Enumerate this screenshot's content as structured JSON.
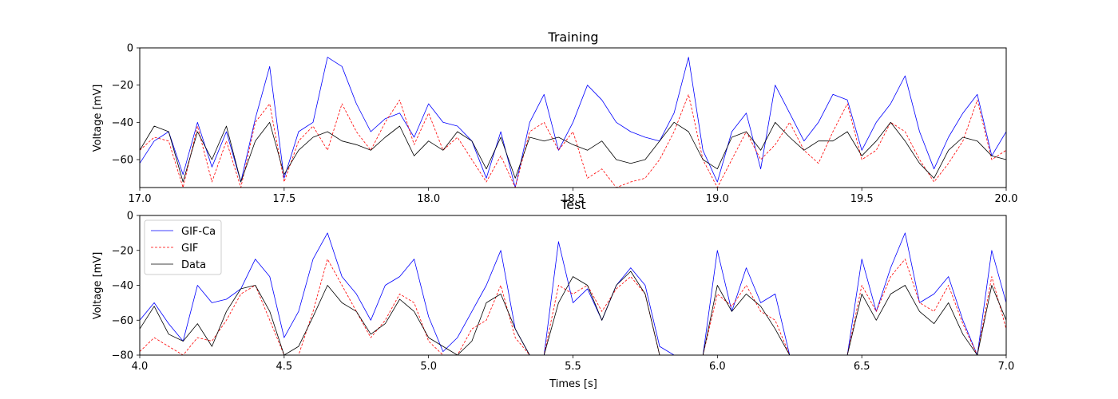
{
  "figure": {
    "xlabel": "Times [s]"
  },
  "colors": {
    "gif_ca": "#0000ff",
    "gif": "#ff0000",
    "data": "#000000",
    "axes": "#000000",
    "background": "#ffffff"
  },
  "chart_data": [
    {
      "type": "line",
      "title": "Training",
      "ylabel": "Voltage [mV]",
      "xlabel": "",
      "xlim": [
        17.0,
        20.0
      ],
      "ylim": [
        -75,
        0
      ],
      "xticks": [
        "17.0",
        "17.5",
        "18.0",
        "18.5",
        "19.0",
        "19.5",
        "20.0"
      ],
      "yticks": [
        "-60",
        "-40",
        "-20",
        "0"
      ],
      "grid": false,
      "legend": null,
      "series": [
        {
          "name": "GIF-Ca",
          "style": "solid",
          "x": [
            17.0,
            17.05,
            17.1,
            17.15,
            17.2,
            17.25,
            17.3,
            17.35,
            17.4,
            17.45,
            17.5,
            17.55,
            17.6,
            17.65,
            17.7,
            17.75,
            17.8,
            17.85,
            17.9,
            17.95,
            18.0,
            18.05,
            18.1,
            18.15,
            18.2,
            18.25,
            18.3,
            18.35,
            18.4,
            18.45,
            18.5,
            18.55,
            18.6,
            18.65,
            18.7,
            18.75,
            18.8,
            18.85,
            18.9,
            18.95,
            19.0,
            19.05,
            19.1,
            19.15,
            19.2,
            19.25,
            19.3,
            19.35,
            19.4,
            19.45,
            19.5,
            19.55,
            19.6,
            19.65,
            19.7,
            19.75,
            19.8,
            19.85,
            19.9,
            19.95,
            20.0
          ],
          "y": [
            -62,
            -50,
            -45,
            -68,
            -40,
            -64,
            -45,
            -72,
            -38,
            -10,
            -70,
            -45,
            -40,
            -5,
            -10,
            -30,
            -45,
            -38,
            -35,
            -48,
            -30,
            -40,
            -42,
            -50,
            -70,
            -45,
            -75,
            -40,
            -25,
            -55,
            -40,
            -20,
            -28,
            -40,
            -45,
            -48,
            -50,
            -35,
            -5,
            -55,
            -72,
            -45,
            -35,
            -65,
            -20,
            -35,
            -50,
            -40,
            -25,
            -28,
            -55,
            -40,
            -30,
            -15,
            -45,
            -65,
            -48,
            -35,
            -25,
            -58,
            -45
          ]
        },
        {
          "name": "GIF",
          "style": "dashed",
          "x": [
            17.0,
            17.05,
            17.1,
            17.15,
            17.2,
            17.25,
            17.3,
            17.35,
            17.4,
            17.45,
            17.5,
            17.55,
            17.6,
            17.65,
            17.7,
            17.75,
            17.8,
            17.85,
            17.9,
            17.95,
            18.0,
            18.05,
            18.1,
            18.15,
            18.2,
            18.25,
            18.3,
            18.35,
            18.4,
            18.45,
            18.5,
            18.55,
            18.6,
            18.65,
            18.7,
            18.75,
            18.8,
            18.85,
            18.9,
            18.95,
            19.0,
            19.05,
            19.1,
            19.15,
            19.2,
            19.25,
            19.3,
            19.35,
            19.4,
            19.45,
            19.5,
            19.55,
            19.6,
            19.65,
            19.7,
            19.75,
            19.8,
            19.85,
            19.9,
            19.95,
            20.0
          ],
          "y": [
            -55,
            -48,
            -50,
            -75,
            -42,
            -72,
            -50,
            -75,
            -40,
            -30,
            -72,
            -50,
            -42,
            -55,
            -30,
            -45,
            -55,
            -40,
            -28,
            -52,
            -35,
            -55,
            -48,
            -60,
            -72,
            -58,
            -75,
            -45,
            -40,
            -55,
            -45,
            -70,
            -65,
            -75,
            -72,
            -70,
            -60,
            -45,
            -25,
            -60,
            -75,
            -60,
            -45,
            -60,
            -52,
            -40,
            -55,
            -62,
            -45,
            -30,
            -60,
            -55,
            -40,
            -45,
            -60,
            -72,
            -62,
            -50,
            -28,
            -60,
            -55
          ]
        },
        {
          "name": "Data",
          "style": "solid",
          "x": [
            17.0,
            17.05,
            17.1,
            17.15,
            17.2,
            17.25,
            17.3,
            17.35,
            17.4,
            17.45,
            17.5,
            17.55,
            17.6,
            17.65,
            17.7,
            17.75,
            17.8,
            17.85,
            17.9,
            17.95,
            18.0,
            18.05,
            18.1,
            18.15,
            18.2,
            18.25,
            18.3,
            18.35,
            18.4,
            18.45,
            18.5,
            18.55,
            18.6,
            18.65,
            18.7,
            18.75,
            18.8,
            18.85,
            18.9,
            18.95,
            19.0,
            19.05,
            19.1,
            19.15,
            19.2,
            19.25,
            19.3,
            19.35,
            19.4,
            19.45,
            19.5,
            19.55,
            19.6,
            19.65,
            19.7,
            19.75,
            19.8,
            19.85,
            19.9,
            19.95,
            20.0
          ],
          "y": [
            -55,
            -42,
            -45,
            -72,
            -45,
            -60,
            -42,
            -72,
            -50,
            -40,
            -68,
            -55,
            -48,
            -45,
            -50,
            -52,
            -55,
            -48,
            -42,
            -58,
            -50,
            -55,
            -45,
            -50,
            -65,
            -48,
            -70,
            -48,
            -50,
            -48,
            -52,
            -55,
            -50,
            -60,
            -62,
            -60,
            -50,
            -40,
            -45,
            -60,
            -65,
            -48,
            -45,
            -55,
            -40,
            -48,
            -55,
            -50,
            -50,
            -45,
            -58,
            -50,
            -40,
            -50,
            -62,
            -70,
            -55,
            -48,
            -50,
            -58,
            -60
          ]
        }
      ]
    },
    {
      "type": "line",
      "title": "Test",
      "ylabel": "Voltage [mV]",
      "xlabel": "Times [s]",
      "xlim": [
        4.0,
        7.0
      ],
      "ylim": [
        -80,
        0
      ],
      "xticks": [
        "4.0",
        "4.5",
        "5.0",
        "5.5",
        "6.0",
        "6.5",
        "7.0"
      ],
      "yticks": [
        "-80",
        "-60",
        "-40",
        "-20",
        "0"
      ],
      "grid": false,
      "legend": {
        "position": "upper-left",
        "entries": [
          "GIF-Ca",
          "GIF",
          "Data"
        ]
      },
      "series": [
        {
          "name": "GIF-Ca",
          "style": "solid",
          "x": [
            4.0,
            4.05,
            4.1,
            4.15,
            4.2,
            4.25,
            4.3,
            4.35,
            4.4,
            4.45,
            4.5,
            4.55,
            4.6,
            4.65,
            4.7,
            4.75,
            4.8,
            4.85,
            4.9,
            4.95,
            5.0,
            5.05,
            5.1,
            5.15,
            5.2,
            5.25,
            5.3,
            5.35,
            5.4,
            5.45,
            5.5,
            5.55,
            5.6,
            5.65,
            5.7,
            5.75,
            5.8,
            5.85,
            5.9,
            5.95,
            6.0,
            6.05,
            6.1,
            6.15,
            6.2,
            6.25,
            6.3,
            6.35,
            6.4,
            6.45,
            6.5,
            6.55,
            6.6,
            6.65,
            6.7,
            6.75,
            6.8,
            6.85,
            6.9,
            6.95,
            7.0
          ],
          "y": [
            -60,
            -50,
            -62,
            -72,
            -40,
            -50,
            -48,
            -42,
            -25,
            -35,
            -70,
            -55,
            -25,
            -10,
            -35,
            -45,
            -60,
            -40,
            -35,
            -25,
            -58,
            -78,
            -70,
            -55,
            -40,
            -20,
            -65,
            -80,
            -80,
            -15,
            -50,
            -42,
            -60,
            -40,
            -30,
            -40,
            -75,
            -80,
            -80,
            -80,
            -20,
            -55,
            -30,
            -50,
            -45,
            -80,
            -80,
            -80,
            -80,
            -80,
            -25,
            -55,
            -30,
            -10,
            -50,
            -45,
            -35,
            -60,
            -80,
            -20,
            -50
          ]
        },
        {
          "name": "GIF",
          "style": "dashed",
          "x": [
            4.0,
            4.05,
            4.1,
            4.15,
            4.2,
            4.25,
            4.3,
            4.35,
            4.4,
            4.45,
            4.5,
            4.55,
            4.6,
            4.65,
            4.7,
            4.75,
            4.8,
            4.85,
            4.9,
            4.95,
            5.0,
            5.05,
            5.1,
            5.15,
            5.2,
            5.25,
            5.3,
            5.35,
            5.4,
            5.45,
            5.5,
            5.55,
            5.6,
            5.65,
            5.7,
            5.75,
            5.8,
            5.85,
            5.9,
            5.95,
            6.0,
            6.05,
            6.1,
            6.15,
            6.2,
            6.25,
            6.3,
            6.35,
            6.4,
            6.45,
            6.5,
            6.55,
            6.6,
            6.65,
            6.7,
            6.75,
            6.8,
            6.85,
            6.9,
            6.95,
            7.0
          ],
          "y": [
            -78,
            -70,
            -75,
            -80,
            -70,
            -72,
            -60,
            -45,
            -40,
            -60,
            -80,
            -80,
            -55,
            -25,
            -40,
            -55,
            -70,
            -60,
            -45,
            -50,
            -72,
            -80,
            -80,
            -65,
            -60,
            -40,
            -70,
            -80,
            -80,
            -40,
            -45,
            -40,
            -55,
            -42,
            -35,
            -45,
            -80,
            -80,
            -80,
            -80,
            -45,
            -52,
            -40,
            -55,
            -60,
            -80,
            -80,
            -80,
            -80,
            -80,
            -40,
            -55,
            -35,
            -25,
            -50,
            -55,
            -40,
            -62,
            -80,
            -35,
            -65
          ]
        },
        {
          "name": "Data",
          "style": "solid",
          "x": [
            4.0,
            4.05,
            4.1,
            4.15,
            4.2,
            4.25,
            4.3,
            4.35,
            4.4,
            4.45,
            4.5,
            4.55,
            4.6,
            4.65,
            4.7,
            4.75,
            4.8,
            4.85,
            4.9,
            4.95,
            5.0,
            5.05,
            5.1,
            5.15,
            5.2,
            5.25,
            5.3,
            5.35,
            5.4,
            5.45,
            5.5,
            5.55,
            5.6,
            5.65,
            5.7,
            5.75,
            5.8,
            5.85,
            5.9,
            5.95,
            6.0,
            6.05,
            6.1,
            6.15,
            6.2,
            6.25,
            6.3,
            6.35,
            6.4,
            6.45,
            6.5,
            6.55,
            6.6,
            6.65,
            6.7,
            6.75,
            6.8,
            6.85,
            6.9,
            6.95,
            7.0
          ],
          "y": [
            -65,
            -52,
            -68,
            -72,
            -62,
            -75,
            -55,
            -42,
            -40,
            -55,
            -80,
            -75,
            -58,
            -40,
            -50,
            -55,
            -68,
            -62,
            -48,
            -55,
            -70,
            -75,
            -80,
            -72,
            -50,
            -45,
            -65,
            -80,
            -80,
            -50,
            -35,
            -40,
            -60,
            -40,
            -32,
            -45,
            -80,
            -80,
            -80,
            -80,
            -40,
            -55,
            -45,
            -52,
            -65,
            -80,
            -80,
            -80,
            -80,
            -80,
            -45,
            -60,
            -45,
            -40,
            -55,
            -62,
            -50,
            -68,
            -80,
            -40,
            -60
          ]
        }
      ]
    }
  ]
}
